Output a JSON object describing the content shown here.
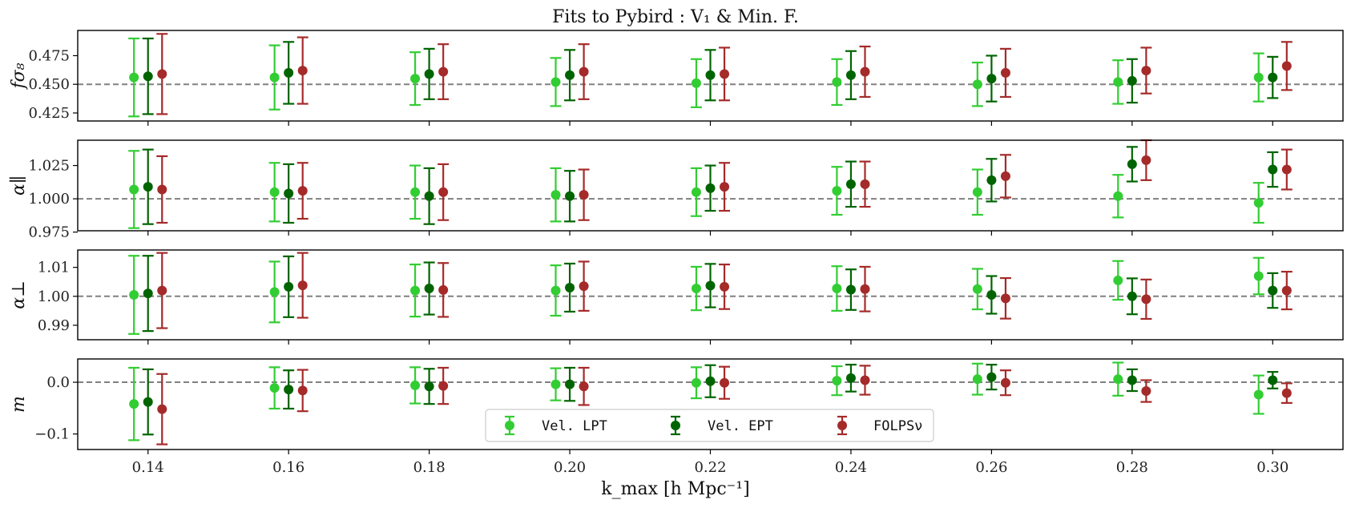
{
  "chart_data": {
    "type": "scatter",
    "title": "Fits to Pybird : V₁ & Min. F.",
    "xlabel": "k_max [h Mpc⁻¹]",
    "x": [
      0.14,
      0.16,
      0.18,
      0.2,
      0.22,
      0.24,
      0.26,
      0.28,
      0.3
    ],
    "x_ticks": [
      "0.14",
      "0.16",
      "0.18",
      "0.20",
      "0.22",
      "0.24",
      "0.26",
      "0.28",
      "0.30"
    ],
    "x_offsets": [
      -0.002,
      0.0,
      0.002
    ],
    "xlim": [
      0.13,
      0.31
    ],
    "series_names": [
      "Vel.  LPT",
      "Vel.  EPT",
      "FOLPSν"
    ],
    "colors": [
      "#32cd32",
      "#006400",
      "#a52a2a"
    ],
    "reference_color": "#808080",
    "panels": [
      {
        "ylabel": "fσ₈",
        "ylim": [
          0.418,
          0.497
        ],
        "reference": 0.45,
        "yticks": [
          "0.425",
          "0.450",
          "0.475"
        ],
        "ytick_values": [
          0.425,
          0.45,
          0.475
        ],
        "series": [
          {
            "name": "Vel.  LPT",
            "values": [
              0.456,
              0.456,
              0.455,
              0.452,
              0.451,
              0.452,
              0.45,
              0.452,
              0.456
            ],
            "errors": [
              0.034,
              0.028,
              0.023,
              0.021,
              0.021,
              0.02,
              0.019,
              0.019,
              0.021
            ]
          },
          {
            "name": "Vel.  EPT",
            "values": [
              0.457,
              0.46,
              0.459,
              0.458,
              0.458,
              0.458,
              0.455,
              0.453,
              0.456
            ],
            "errors": [
              0.033,
              0.027,
              0.022,
              0.022,
              0.022,
              0.021,
              0.02,
              0.019,
              0.018
            ]
          },
          {
            "name": "FOLPSν",
            "values": [
              0.459,
              0.462,
              0.461,
              0.461,
              0.459,
              0.461,
              0.46,
              0.462,
              0.466
            ],
            "errors": [
              0.035,
              0.029,
              0.024,
              0.024,
              0.023,
              0.022,
              0.021,
              0.02,
              0.021
            ]
          }
        ]
      },
      {
        "ylabel": "α∥",
        "ylim": [
          0.976,
          1.044
        ],
        "reference": 1.0,
        "yticks": [
          "0.975",
          "1.000",
          "1.025"
        ],
        "ytick_values": [
          0.975,
          1.0,
          1.025
        ],
        "series": [
          {
            "name": "Vel.  LPT",
            "values": [
              1.007,
              1.005,
              1.005,
              1.003,
              1.005,
              1.006,
              1.005,
              1.002,
              0.997
            ],
            "errors": [
              0.029,
              0.022,
              0.02,
              0.02,
              0.018,
              0.018,
              0.017,
              0.016,
              0.015
            ]
          },
          {
            "name": "Vel.  EPT",
            "values": [
              1.009,
              1.004,
              1.002,
              1.002,
              1.008,
              1.011,
              1.014,
              1.026,
              1.022
            ],
            "errors": [
              0.028,
              0.022,
              0.021,
              0.019,
              0.017,
              0.017,
              0.016,
              0.013,
              0.013
            ]
          },
          {
            "name": "FOLPSν",
            "values": [
              1.007,
              1.006,
              1.005,
              1.003,
              1.009,
              1.011,
              1.017,
              1.029,
              1.022
            ],
            "errors": [
              0.025,
              0.021,
              0.021,
              0.019,
              0.018,
              0.017,
              0.016,
              0.015,
              0.015
            ]
          }
        ]
      },
      {
        "ylabel": "α⊥",
        "ylim": [
          0.985,
          1.016
        ],
        "reference": 1.0,
        "yticks": [
          "0.99",
          "1.00",
          "1.01"
        ],
        "ytick_values": [
          0.99,
          1.0,
          1.01
        ],
        "series": [
          {
            "name": "Vel.  LPT",
            "values": [
              1.0005,
              1.0015,
              1.002,
              1.002,
              1.0027,
              1.0027,
              1.0025,
              1.0055,
              1.007
            ],
            "errors": [
              0.0135,
              0.0105,
              0.009,
              0.0087,
              0.0075,
              0.0077,
              0.007,
              0.0067,
              0.0063
            ]
          },
          {
            "name": "Vel.  EPT",
            "values": [
              1.001,
              1.0033,
              1.0027,
              1.003,
              1.0037,
              1.0023,
              1.0005,
              1.0,
              1.002
            ],
            "errors": [
              0.013,
              0.0105,
              0.009,
              0.0083,
              0.0075,
              0.007,
              0.0065,
              0.0062,
              0.006
            ]
          },
          {
            "name": "FOLPSν",
            "values": [
              1.002,
              1.0038,
              1.0022,
              1.0035,
              1.0033,
              1.0025,
              0.9993,
              0.999,
              1.002
            ],
            "errors": [
              0.013,
              0.0112,
              0.0093,
              0.0085,
              0.0077,
              0.0077,
              0.007,
              0.0068,
              0.0065
            ]
          }
        ]
      },
      {
        "ylabel": "m",
        "ylim": [
          -0.13,
          0.045
        ],
        "reference": 0.0,
        "yticks": [
          "−0.1",
          "0.0"
        ],
        "ytick_values": [
          -0.1,
          0.0
        ],
        "series": [
          {
            "name": "Vel.  LPT",
            "values": [
              -0.042,
              -0.011,
              -0.006,
              -0.004,
              -0.001,
              0.003,
              0.006,
              0.006,
              -0.024
            ],
            "errors": [
              0.07,
              0.04,
              0.035,
              0.031,
              0.03,
              0.028,
              0.03,
              0.032,
              0.037
            ]
          },
          {
            "name": "Vel.  EPT",
            "values": [
              -0.038,
              -0.014,
              -0.008,
              -0.004,
              0.002,
              0.008,
              0.01,
              0.004,
              0.004
            ],
            "errors": [
              0.063,
              0.037,
              0.034,
              0.032,
              0.031,
              0.026,
              0.024,
              0.021,
              0.016
            ]
          },
          {
            "name": "FOLPSν",
            "values": [
              -0.052,
              -0.016,
              -0.007,
              -0.008,
              -0.001,
              0.004,
              -0.001,
              -0.017,
              -0.021
            ],
            "errors": [
              0.068,
              0.04,
              0.035,
              0.036,
              0.031,
              0.028,
              0.024,
              0.021,
              0.019
            ]
          }
        ]
      }
    ]
  }
}
